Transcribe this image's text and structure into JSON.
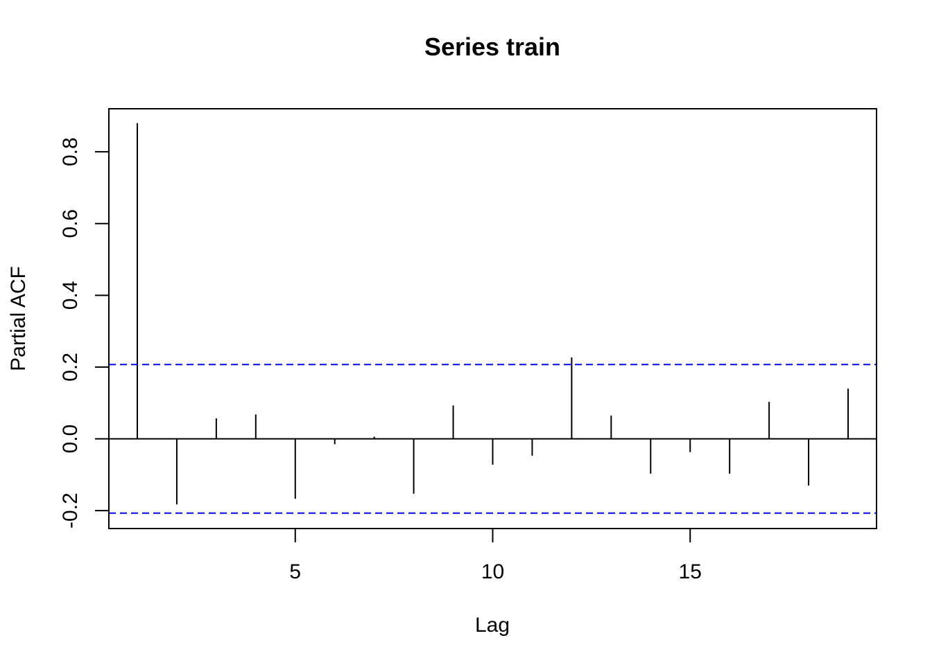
{
  "chart_data": {
    "type": "bar",
    "title": "Series  train",
    "xlabel": "Lag",
    "ylabel": "Partial ACF",
    "x": [
      1,
      2,
      3,
      4,
      5,
      6,
      7,
      8,
      9,
      10,
      11,
      12,
      13,
      14,
      15,
      16,
      17,
      18,
      19
    ],
    "values": [
      0.88,
      -0.183,
      0.057,
      0.068,
      -0.167,
      -0.015,
      0.006,
      -0.153,
      0.093,
      -0.072,
      -0.047,
      0.227,
      0.065,
      -0.097,
      -0.037,
      -0.097,
      0.103,
      -0.13,
      0.14
    ],
    "confidence_limits": [
      0.207,
      -0.207
    ],
    "xlim": [
      0.28,
      19.72
    ],
    "ylim": [
      -0.25,
      0.92
    ],
    "x_ticks": [
      5,
      10,
      15
    ],
    "y_ticks": [
      -0.2,
      0.0,
      0.2,
      0.4,
      0.6,
      0.8
    ],
    "y_tick_labels": [
      "-0.2",
      "0.0",
      "0.2",
      "0.4",
      "0.6",
      "0.8"
    ],
    "grid": false,
    "zero_line": true,
    "colors": {
      "bars": "#000000",
      "confidence": "#0000ff",
      "axes": "#000000"
    }
  }
}
